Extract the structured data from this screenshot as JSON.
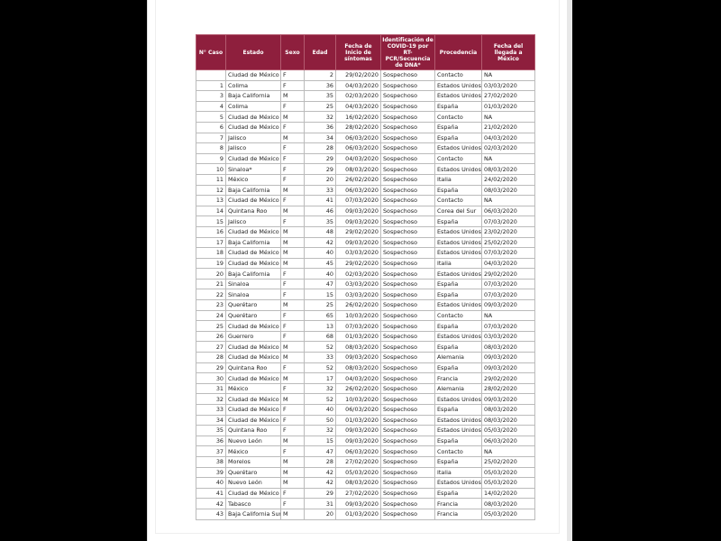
{
  "table": {
    "header": [
      "N° Caso",
      "Estado",
      "Sexo",
      "Edad",
      "Fecha de Inicio de síntomas",
      "Identificación de COVID-19 por RT-PCR/Secuencia de DNA*",
      "Procedencia",
      "Fecha del llegada a México"
    ],
    "rows": [
      [
        null,
        "Ciudad de México",
        "F",
        2,
        "29/02/2020",
        "Sospechoso",
        "Contacto",
        "NA"
      ],
      [
        "1",
        "Colima",
        "F",
        36,
        "04/03/2020",
        "Sospechoso",
        "Estados Unidos",
        "03/03/2020"
      ],
      [
        "3",
        "Baja California",
        "M",
        35,
        "02/03/2020",
        "Sospechoso",
        "Estados Unidos",
        "27/02/2020"
      ],
      [
        "4",
        "Colima",
        "F",
        25,
        "04/03/2020",
        "Sospechoso",
        "España",
        "01/03/2020"
      ],
      [
        "5",
        "Ciudad de México",
        "M",
        32,
        "16/02/2020",
        "Sospechoso",
        "Contacto",
        "NA"
      ],
      [
        "6",
        "Ciudad de México",
        "F",
        36,
        "28/02/2020",
        "Sospechoso",
        "España",
        "21/02/2020"
      ],
      [
        "7",
        "Jalisco",
        "M",
        34,
        "06/03/2020",
        "Sospechoso",
        "España",
        "04/03/2020"
      ],
      [
        "8",
        "Jalisco",
        "F",
        28,
        "06/03/2020",
        "Sospechoso",
        "Estados Unidos",
        "02/03/2020"
      ],
      [
        "9",
        "Ciudad de México",
        "F",
        29,
        "04/03/2020",
        "Sospechoso",
        "Contacto",
        "NA"
      ],
      [
        "10",
        "Sinaloa*",
        "F",
        29,
        "08/03/2020",
        "Sospechoso",
        "Estados Unidos",
        "08/03/2020"
      ],
      [
        "11",
        "México",
        "F",
        20,
        "26/02/2020",
        "Sospechoso",
        "Italia",
        "24/02/2020"
      ],
      [
        "12",
        "Baja California",
        "M",
        33,
        "06/03/2020",
        "Sospechoso",
        "España",
        "08/03/2020"
      ],
      [
        "13",
        "Ciudad de México",
        "F",
        41,
        "07/03/2020",
        "Sospechoso",
        "Contacto",
        "NA"
      ],
      [
        "14",
        "Quintana Roo",
        "M",
        46,
        "09/03/2020",
        "Sospechoso",
        "Corea del Sur",
        "06/03/2020"
      ],
      [
        "15",
        "Jalisco",
        "F",
        35,
        "09/03/2020",
        "Sospechoso",
        "España",
        "07/03/2020"
      ],
      [
        "16",
        "Ciudad de México",
        "M",
        48,
        "29/02/2020",
        "Sospechoso",
        "Estados Unidos",
        "23/02/2020"
      ],
      [
        "17",
        "Baja California",
        "M",
        42,
        "09/03/2020",
        "Sospechoso",
        "Estados Unidos",
        "25/02/2020"
      ],
      [
        "18",
        "Ciudad de México",
        "M",
        40,
        "03/03/2020",
        "Sospechoso",
        "Estados Unidos",
        "07/03/2020"
      ],
      [
        "19",
        "Ciudad de México",
        "M",
        45,
        "29/02/2020",
        "Sospechoso",
        "Italia",
        "04/03/2020"
      ],
      [
        "20",
        "Baja California",
        "F",
        40,
        "02/03/2020",
        "Sospechoso",
        "Estados Unidos",
        "29/02/2020"
      ],
      [
        "21",
        "Sinaloa",
        "F",
        47,
        "03/03/2020",
        "Sospechoso",
        "España",
        "07/03/2020"
      ],
      [
        "22",
        "Sinaloa",
        "F",
        15,
        "03/03/2020",
        "Sospechoso",
        "España",
        "07/03/2020"
      ],
      [
        "23",
        "Querétaro",
        "M",
        25,
        "26/02/2020",
        "Sospechoso",
        "Estados Unidos",
        "09/03/2020"
      ],
      [
        "24",
        "Querétaro",
        "F",
        65,
        "10/03/2020",
        "Sospechoso",
        "Contacto",
        "NA"
      ],
      [
        "25",
        "Ciudad de México",
        "F",
        13,
        "07/03/2020",
        "Sospechoso",
        "España",
        "07/03/2020"
      ],
      [
        "26",
        "Guerrero",
        "F",
        68,
        "01/03/2020",
        "Sospechoso",
        "Estados Unidos",
        "03/03/2020"
      ],
      [
        "27",
        "Ciudad de México",
        "M",
        52,
        "08/03/2020",
        "Sospechoso",
        "España",
        "08/03/2020"
      ],
      [
        "28",
        "Ciudad de México",
        "M",
        33,
        "09/03/2020",
        "Sospechoso",
        "Alemania",
        "09/03/2020"
      ],
      [
        "29",
        "Quintana Roo",
        "F",
        52,
        "08/03/2020",
        "Sospechoso",
        "España",
        "09/03/2020"
      ],
      [
        "30",
        "Ciudad de México",
        "M",
        17,
        "04/03/2020",
        "Sospechoso",
        "Francia",
        "29/02/2020"
      ],
      [
        "31",
        "México",
        "F",
        32,
        "26/02/2020",
        "Sospechoso",
        "Alemania",
        "28/02/2020"
      ],
      [
        "32",
        "Ciudad de México",
        "M",
        52,
        "10/03/2020",
        "Sospechoso",
        "Estados Unidos",
        "09/03/2020"
      ],
      [
        "33",
        "Ciudad de México",
        "F",
        40,
        "06/03/2020",
        "Sospechoso",
        "España",
        "08/03/2020"
      ],
      [
        "34",
        "Ciudad de México",
        "F",
        50,
        "01/03/2020",
        "Sospechoso",
        "Estados Unidos",
        "08/03/2020"
      ],
      [
        "35",
        "Quintana Roo",
        "F",
        32,
        "09/03/2020",
        "Sospechoso",
        "Estados Unidos",
        "05/03/2020"
      ],
      [
        "36",
        "Nuevo León",
        "M",
        15,
        "09/03/2020",
        "Sospechoso",
        "España",
        "06/03/2020"
      ],
      [
        "37",
        "México",
        "F",
        47,
        "06/03/2020",
        "Sospechoso",
        "Contacto",
        "NA"
      ],
      [
        "38",
        "Morelos",
        "M",
        28,
        "27/02/2020",
        "Sospechoso",
        "España",
        "25/02/2020"
      ],
      [
        "39",
        "Querétaro",
        "M",
        42,
        "05/03/2020",
        "Sospechoso",
        "Italia",
        "05/03/2020"
      ],
      [
        "40",
        "Nuevo León",
        "M",
        42,
        "08/03/2020",
        "Sospechoso",
        "Estados Unidos",
        "05/03/2020"
      ],
      [
        "41",
        "Ciudad de México",
        "F",
        29,
        "27/02/2020",
        "Sospechoso",
        "España",
        "14/02/2020"
      ],
      [
        "42",
        "Tabasco",
        "F",
        31,
        "09/03/2020",
        "Sospechoso",
        "Francia",
        "08/03/2020"
      ],
      [
        "43",
        "Baja California Sur",
        "M",
        20,
        "01/03/2020",
        "Sospechoso",
        "Francia",
        "05/03/2020"
      ]
    ]
  }
}
